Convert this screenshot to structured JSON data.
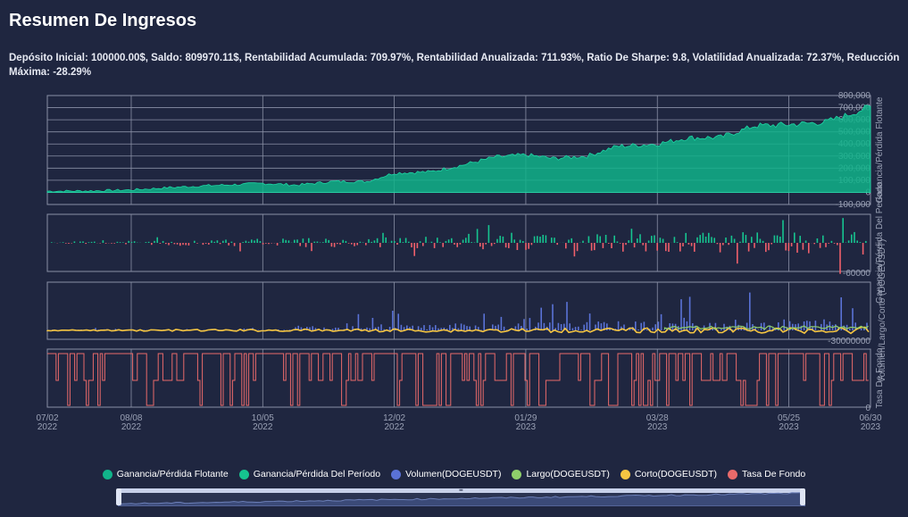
{
  "title": "Resumen De Ingresos",
  "summary": "Depósito Inicial: 100000.00$, Saldo: 809970.11$, Rentabilidad Acumulada: 709.97%, Rentabilidad Anualizada: 711.93%, Ratio De Sharpe: 9.8, Volatilidad Anualizada: 72.37%, Reducción Máxima: -28.29%",
  "colors": {
    "background": "#1f2640",
    "floating": "#11b38a",
    "period_pos": "#16c48f",
    "period_neg": "#f0606b",
    "volume": "#5a72d6",
    "long": "#8ecf6a",
    "short": "#f5c542",
    "funding": "#e86a6a",
    "grid": "#8a90a6"
  },
  "legend": [
    {
      "label": "Ganancia/Pérdida Flotante",
      "color": "#11b38a"
    },
    {
      "label": "Ganancia/Pérdida Del Período",
      "color": "#16c48f"
    },
    {
      "label": "Volumen(DOGEUSDT)",
      "color": "#5a72d6"
    },
    {
      "label": "Largo(DOGEUSDT)",
      "color": "#8ecf6a"
    },
    {
      "label": "Corto(DOGEUSDT)",
      "color": "#f5c542"
    },
    {
      "label": "Tasa De Fondo",
      "color": "#e86a6a"
    }
  ],
  "slider": {
    "grip": "≡",
    "range": [
      0,
      100
    ]
  },
  "chart_data": [
    {
      "type": "area",
      "ylabel": "Ganancia/Pérdida Flotante",
      "yticks": [
        "800,000",
        "700,000",
        "600,000",
        "500,000",
        "400,000",
        "300,000",
        "200,000",
        "100,000",
        "0",
        "-100,000"
      ],
      "ylim": [
        -100000,
        800000
      ],
      "x": [
        "2022-07-02",
        "2022-07-20",
        "2022-08-08",
        "2022-08-25",
        "2022-09-10",
        "2022-09-25",
        "2022-10-05",
        "2022-10-20",
        "2022-11-05",
        "2022-11-20",
        "2022-12-02",
        "2022-12-18",
        "2023-01-01",
        "2023-01-15",
        "2023-01-29",
        "2023-02-10",
        "2023-02-25",
        "2023-03-10",
        "2023-03-28",
        "2023-04-10",
        "2023-04-25",
        "2023-05-10",
        "2023-05-25",
        "2023-06-10",
        "2023-06-20",
        "2023-06-30"
      ],
      "values": [
        10000,
        12000,
        20000,
        40000,
        55000,
        65000,
        75000,
        60000,
        90000,
        90000,
        160000,
        170000,
        225000,
        290000,
        310000,
        280000,
        300000,
        380000,
        400000,
        450000,
        455000,
        550000,
        560000,
        580000,
        640000,
        710000
      ]
    },
    {
      "type": "bar",
      "ylabel": "Ganancia/Pérdida Del Período",
      "yticks": [
        "-60000"
      ],
      "note": "daily profit/loss bars (positive teal, negative red)",
      "range": [
        -60000,
        60000
      ]
    },
    {
      "type": "bar",
      "ylabel": "Volumen/Largo/Corto (DOGEUSDT)",
      "yticks": [
        "-30000000"
      ],
      "range": [
        -30000000,
        120000000
      ]
    },
    {
      "type": "line",
      "ylabel": "Tasa De Fondo",
      "yticks": [
        "0"
      ],
      "range": [
        0,
        1
      ]
    }
  ],
  "xticks": [
    {
      "date": "07/02",
      "year": "2022"
    },
    {
      "date": "08/08",
      "year": "2022"
    },
    {
      "date": "10/05",
      "year": "2022"
    },
    {
      "date": "12/02",
      "year": "2022"
    },
    {
      "date": "01/29",
      "year": "2023"
    },
    {
      "date": "03/28",
      "year": "2023"
    },
    {
      "date": "05/25",
      "year": "2023"
    },
    {
      "date": "06/30",
      "year": "2023"
    }
  ]
}
